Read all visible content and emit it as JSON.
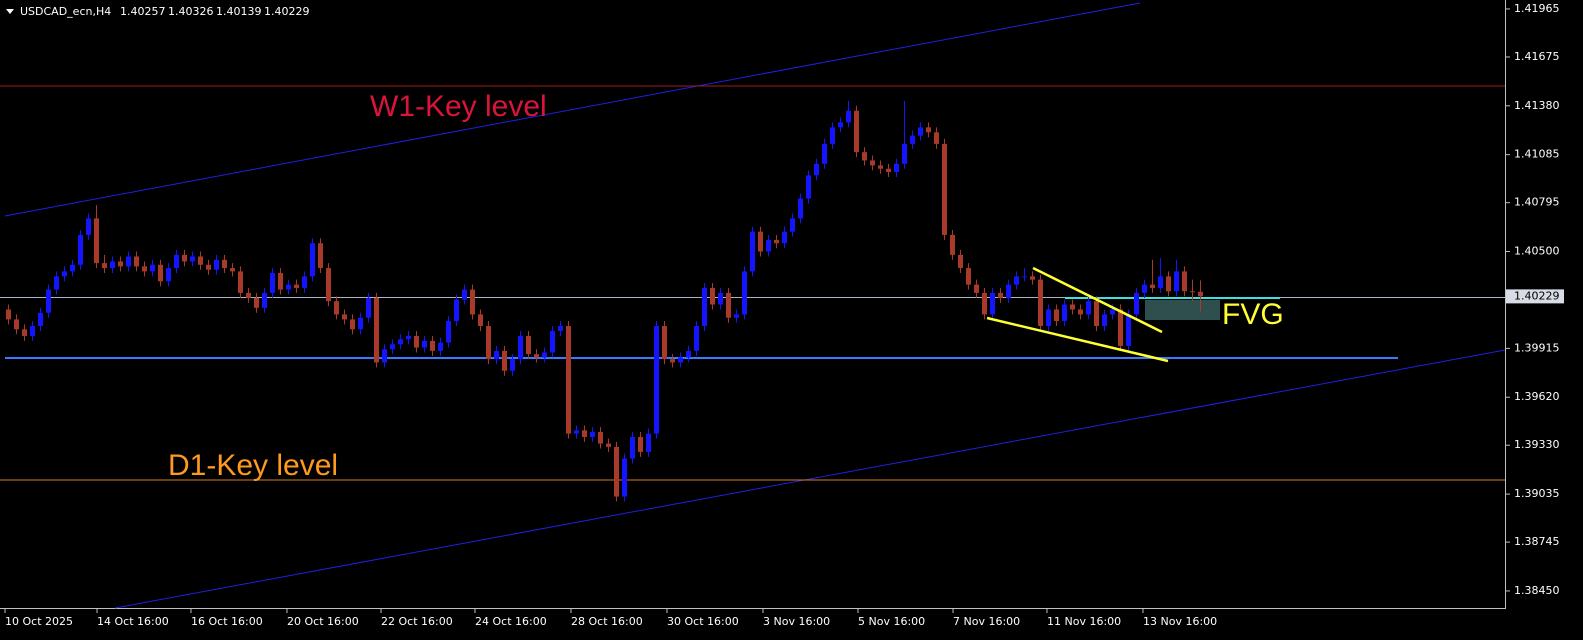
{
  "chart_data": {
    "type": "candlestick",
    "title": "USDCAD_ecn,H4",
    "bull_color": "#1414ff",
    "bear_color": "#a83a2c",
    "ylim": [
      1.38347,
      1.42019
    ],
    "yticks": [
      1.41965,
      1.41675,
      {
        "value": 1.4138,
        "label": "1.41380"
      },
      1.41085,
      1.40795,
      {
        "value": 1.405,
        "label": "1.40500"
      },
      1.39915,
      {
        "value": 1.3962,
        "label": "1.39620"
      },
      {
        "value": 1.3933,
        "label": "1.39330"
      },
      1.39035,
      1.38745,
      {
        "value": 1.3845,
        "label": "1.38450"
      }
    ],
    "x_labels": [
      "10 Oct 2025",
      "14 Oct 16:00",
      "16 Oct 16:00",
      "20 Oct 16:00",
      "22 Oct 16:00",
      "24 Oct 16:00",
      "28 Oct 16:00",
      "30 Oct 16:00",
      "3 Nov 16:00",
      "5 Nov 16:00",
      "7 Nov 16:00",
      "11 Nov 16:00",
      "13 Nov 16:00"
    ],
    "annotations": [
      "W1-Key level",
      "D1-Key level",
      "FVG"
    ],
    "open": [
      1.4015,
      1.4009,
      1.4003,
      1.3999,
      1.4005,
      1.4013,
      1.4027,
      1.4035,
      1.4038,
      1.4042,
      1.406,
      1.407,
      1.4043,
      1.404,
      1.4044,
      1.4041,
      1.4047,
      1.4041,
      1.4038,
      1.4042,
      1.4032,
      1.404,
      1.4048,
      1.4044,
      1.4047,
      1.4042,
      1.4039,
      1.4045,
      1.404,
      1.4038,
      1.4025,
      1.4022,
      1.4016,
      1.4025,
      1.4037,
      1.4027,
      1.403,
      1.4028,
      1.4035,
      1.4055,
      1.404,
      1.402,
      1.4012,
      1.4009,
      1.4003,
      1.401,
      1.4022,
      1.3983,
      1.3991,
      1.3994,
      1.3997,
      1.3999,
      1.3992,
      1.3996,
      1.399,
      1.3995,
      1.4008,
      1.4021,
      1.4027,
      1.4012,
      1.4005,
      1.3985,
      1.399,
      1.3978,
      1.3985,
      1.3999,
      1.3988,
      1.3986,
      1.3989,
      1.4002,
      1.4005,
      1.394,
      1.3942,
      1.3938,
      1.3941,
      1.3934,
      1.3932,
      1.3902,
      1.3925,
      1.3938,
      1.3929,
      1.394,
      1.4005,
      1.3985,
      1.3983,
      1.3986,
      1.399,
      1.4005,
      1.4028,
      1.4018,
      1.4025,
      1.401,
      1.4012,
      1.4038,
      1.4062,
      1.405,
      1.4057,
      1.4055,
      1.4062,
      1.407,
      1.4082,
      1.4096,
      1.4103,
      1.4115,
      1.4125,
      1.4128,
      1.4135,
      1.411,
      1.4105,
      1.4102,
      1.41,
      1.4098,
      1.4103,
      1.4115,
      1.412,
      1.4125,
      1.4122,
      1.4115,
      1.406,
      1.4048,
      1.404,
      1.403,
      1.4025,
      1.4012,
      1.4025,
      1.4022,
      1.403,
      1.4035,
      1.4035,
      1.4033,
      1.4005,
      1.4015,
      1.4008,
      1.4018,
      1.4015,
      1.4012,
      1.402,
      1.4005,
      1.4012,
      1.4015,
      1.3993,
      1.4012,
      1.4025,
      1.403,
      1.4028,
      1.4035,
      1.4026,
      1.4038,
      1.4026,
      1.40257
    ],
    "high": [
      1.4018,
      1.4012,
      1.4006,
      1.4008,
      1.4016,
      1.403,
      1.4038,
      1.4041,
      1.4045,
      1.4063,
      1.4073,
      1.4078,
      1.4048,
      1.4047,
      1.4047,
      1.405,
      1.405,
      1.4044,
      1.4045,
      1.4045,
      1.4043,
      1.4051,
      1.4051,
      1.405,
      1.405,
      1.4045,
      1.4048,
      1.4048,
      1.4043,
      1.4041,
      1.4028,
      1.4025,
      1.4028,
      1.404,
      1.404,
      1.4033,
      1.4033,
      1.4038,
      1.4058,
      1.4058,
      1.4043,
      1.4023,
      1.4015,
      1.4012,
      1.4013,
      1.4025,
      1.4025,
      1.3994,
      1.3997,
      1.4,
      1.4002,
      1.4002,
      1.3999,
      1.3999,
      1.3998,
      1.4011,
      1.4024,
      1.403,
      1.403,
      1.4015,
      1.4008,
      1.3993,
      1.3993,
      1.3988,
      1.4002,
      1.4002,
      1.3991,
      1.3992,
      1.4005,
      1.4008,
      1.4008,
      1.3945,
      1.3945,
      1.3944,
      1.3944,
      1.3937,
      1.3935,
      1.3928,
      1.3941,
      1.3941,
      1.3943,
      1.4008,
      1.4008,
      1.3988,
      1.3989,
      1.3993,
      1.4008,
      1.4031,
      1.4031,
      1.4028,
      1.4028,
      1.4015,
      1.4041,
      1.4065,
      1.4065,
      1.406,
      1.406,
      1.4065,
      1.4073,
      1.4085,
      1.4099,
      1.4106,
      1.4118,
      1.4128,
      1.4131,
      1.4141,
      1.4138,
      1.4113,
      1.4108,
      1.4105,
      1.4103,
      1.4106,
      1.4141,
      1.4123,
      1.4128,
      1.4128,
      1.4125,
      1.4118,
      1.4063,
      1.4051,
      1.4043,
      1.4033,
      1.4028,
      1.4028,
      1.4028,
      1.4033,
      1.4038,
      1.404,
      1.4038,
      1.4036,
      1.4018,
      1.4018,
      1.4021,
      1.4021,
      1.4018,
      1.4023,
      1.4023,
      1.4015,
      1.4018,
      1.4018,
      1.4015,
      1.4028,
      1.4033,
      1.4045,
      1.4046,
      1.4038,
      1.4045,
      1.4041,
      1.4033,
      1.40326
    ],
    "low": [
      1.4006,
      1.4,
      1.3996,
      1.3996,
      1.4002,
      1.401,
      1.4024,
      1.4032,
      1.4035,
      1.4039,
      1.4057,
      1.404,
      1.4037,
      1.4037,
      1.4038,
      1.4038,
      1.4038,
      1.4035,
      1.4035,
      1.4029,
      1.4029,
      1.4037,
      1.4041,
      1.4041,
      1.4039,
      1.4036,
      1.4036,
      1.4037,
      1.4035,
      1.4022,
      1.4019,
      1.4013,
      1.4013,
      1.4022,
      1.4024,
      1.4024,
      1.4025,
      1.4025,
      1.4032,
      1.4037,
      1.4017,
      1.4009,
      1.4006,
      1.4,
      1.4,
      1.4007,
      1.398,
      1.398,
      1.3988,
      1.3991,
      1.3994,
      1.3989,
      1.3989,
      1.3987,
      1.3987,
      1.3992,
      1.4005,
      1.4018,
      1.4009,
      1.4002,
      1.3982,
      1.3982,
      1.3975,
      1.3975,
      1.3982,
      1.3985,
      1.3983,
      1.3983,
      1.3986,
      1.3999,
      1.3937,
      1.3937,
      1.3935,
      1.3935,
      1.3931,
      1.3929,
      1.3899,
      1.3899,
      1.3922,
      1.3926,
      1.3926,
      1.3937,
      1.3982,
      1.398,
      1.398,
      1.3983,
      1.3987,
      1.4002,
      1.4015,
      1.4015,
      1.4007,
      1.4007,
      1.4009,
      1.4035,
      1.4047,
      1.4047,
      1.4052,
      1.4052,
      1.4059,
      1.4067,
      1.4079,
      1.4093,
      1.41,
      1.4112,
      1.4122,
      1.4125,
      1.4107,
      1.4102,
      1.4099,
      1.4097,
      1.4095,
      1.4095,
      1.41,
      1.4112,
      1.4117,
      1.4119,
      1.4112,
      1.4057,
      1.4045,
      1.4037,
      1.4027,
      1.4022,
      1.4009,
      1.4009,
      1.4019,
      1.4019,
      1.4027,
      1.4032,
      1.403,
      1.4002,
      1.4002,
      1.4005,
      1.4005,
      1.4012,
      1.4009,
      1.4009,
      1.4002,
      1.4002,
      1.4009,
      1.399,
      1.399,
      1.4009,
      1.4022,
      1.4025,
      1.4025,
      1.4023,
      1.4023,
      1.4023,
      1.402,
      1.40139
    ],
    "close": [
      1.4009,
      1.4003,
      1.3999,
      1.4005,
      1.4013,
      1.4027,
      1.4035,
      1.4038,
      1.4042,
      1.406,
      1.407,
      1.4043,
      1.404,
      1.4044,
      1.4041,
      1.4047,
      1.4041,
      1.4038,
      1.4042,
      1.4032,
      1.404,
      1.4048,
      1.4044,
      1.4047,
      1.4042,
      1.4039,
      1.4045,
      1.404,
      1.4038,
      1.4025,
      1.4022,
      1.4016,
      1.4025,
      1.4037,
      1.4027,
      1.403,
      1.4028,
      1.4035,
      1.4055,
      1.404,
      1.402,
      1.4012,
      1.4009,
      1.4003,
      1.401,
      1.4022,
      1.3983,
      1.3991,
      1.3994,
      1.3997,
      1.3999,
      1.3992,
      1.3996,
      1.399,
      1.3995,
      1.4008,
      1.4021,
      1.4027,
      1.4012,
      1.4005,
      1.3985,
      1.399,
      1.3978,
      1.3985,
      1.3999,
      1.3988,
      1.3986,
      1.3989,
      1.4002,
      1.4005,
      1.394,
      1.3942,
      1.3938,
      1.3941,
      1.3934,
      1.3932,
      1.3902,
      1.3925,
      1.3938,
      1.3929,
      1.394,
      1.4005,
      1.3985,
      1.3983,
      1.3986,
      1.399,
      1.4005,
      1.4028,
      1.4018,
      1.4025,
      1.401,
      1.4012,
      1.4038,
      1.4062,
      1.405,
      1.4057,
      1.4055,
      1.4062,
      1.407,
      1.4082,
      1.4096,
      1.4103,
      1.4115,
      1.4125,
      1.4128,
      1.4135,
      1.411,
      1.4105,
      1.4102,
      1.41,
      1.4098,
      1.4103,
      1.4115,
      1.412,
      1.4125,
      1.4122,
      1.4115,
      1.406,
      1.4048,
      1.404,
      1.403,
      1.4025,
      1.4012,
      1.4025,
      1.4022,
      1.403,
      1.4035,
      1.4035,
      1.4033,
      1.4005,
      1.4015,
      1.4008,
      1.4018,
      1.4015,
      1.4012,
      1.402,
      1.4005,
      1.4012,
      1.4015,
      1.3993,
      1.4012,
      1.4025,
      1.403,
      1.4028,
      1.4035,
      1.4026,
      1.4038,
      1.4026,
      1.40257,
      1.40229
    ]
  }
}
